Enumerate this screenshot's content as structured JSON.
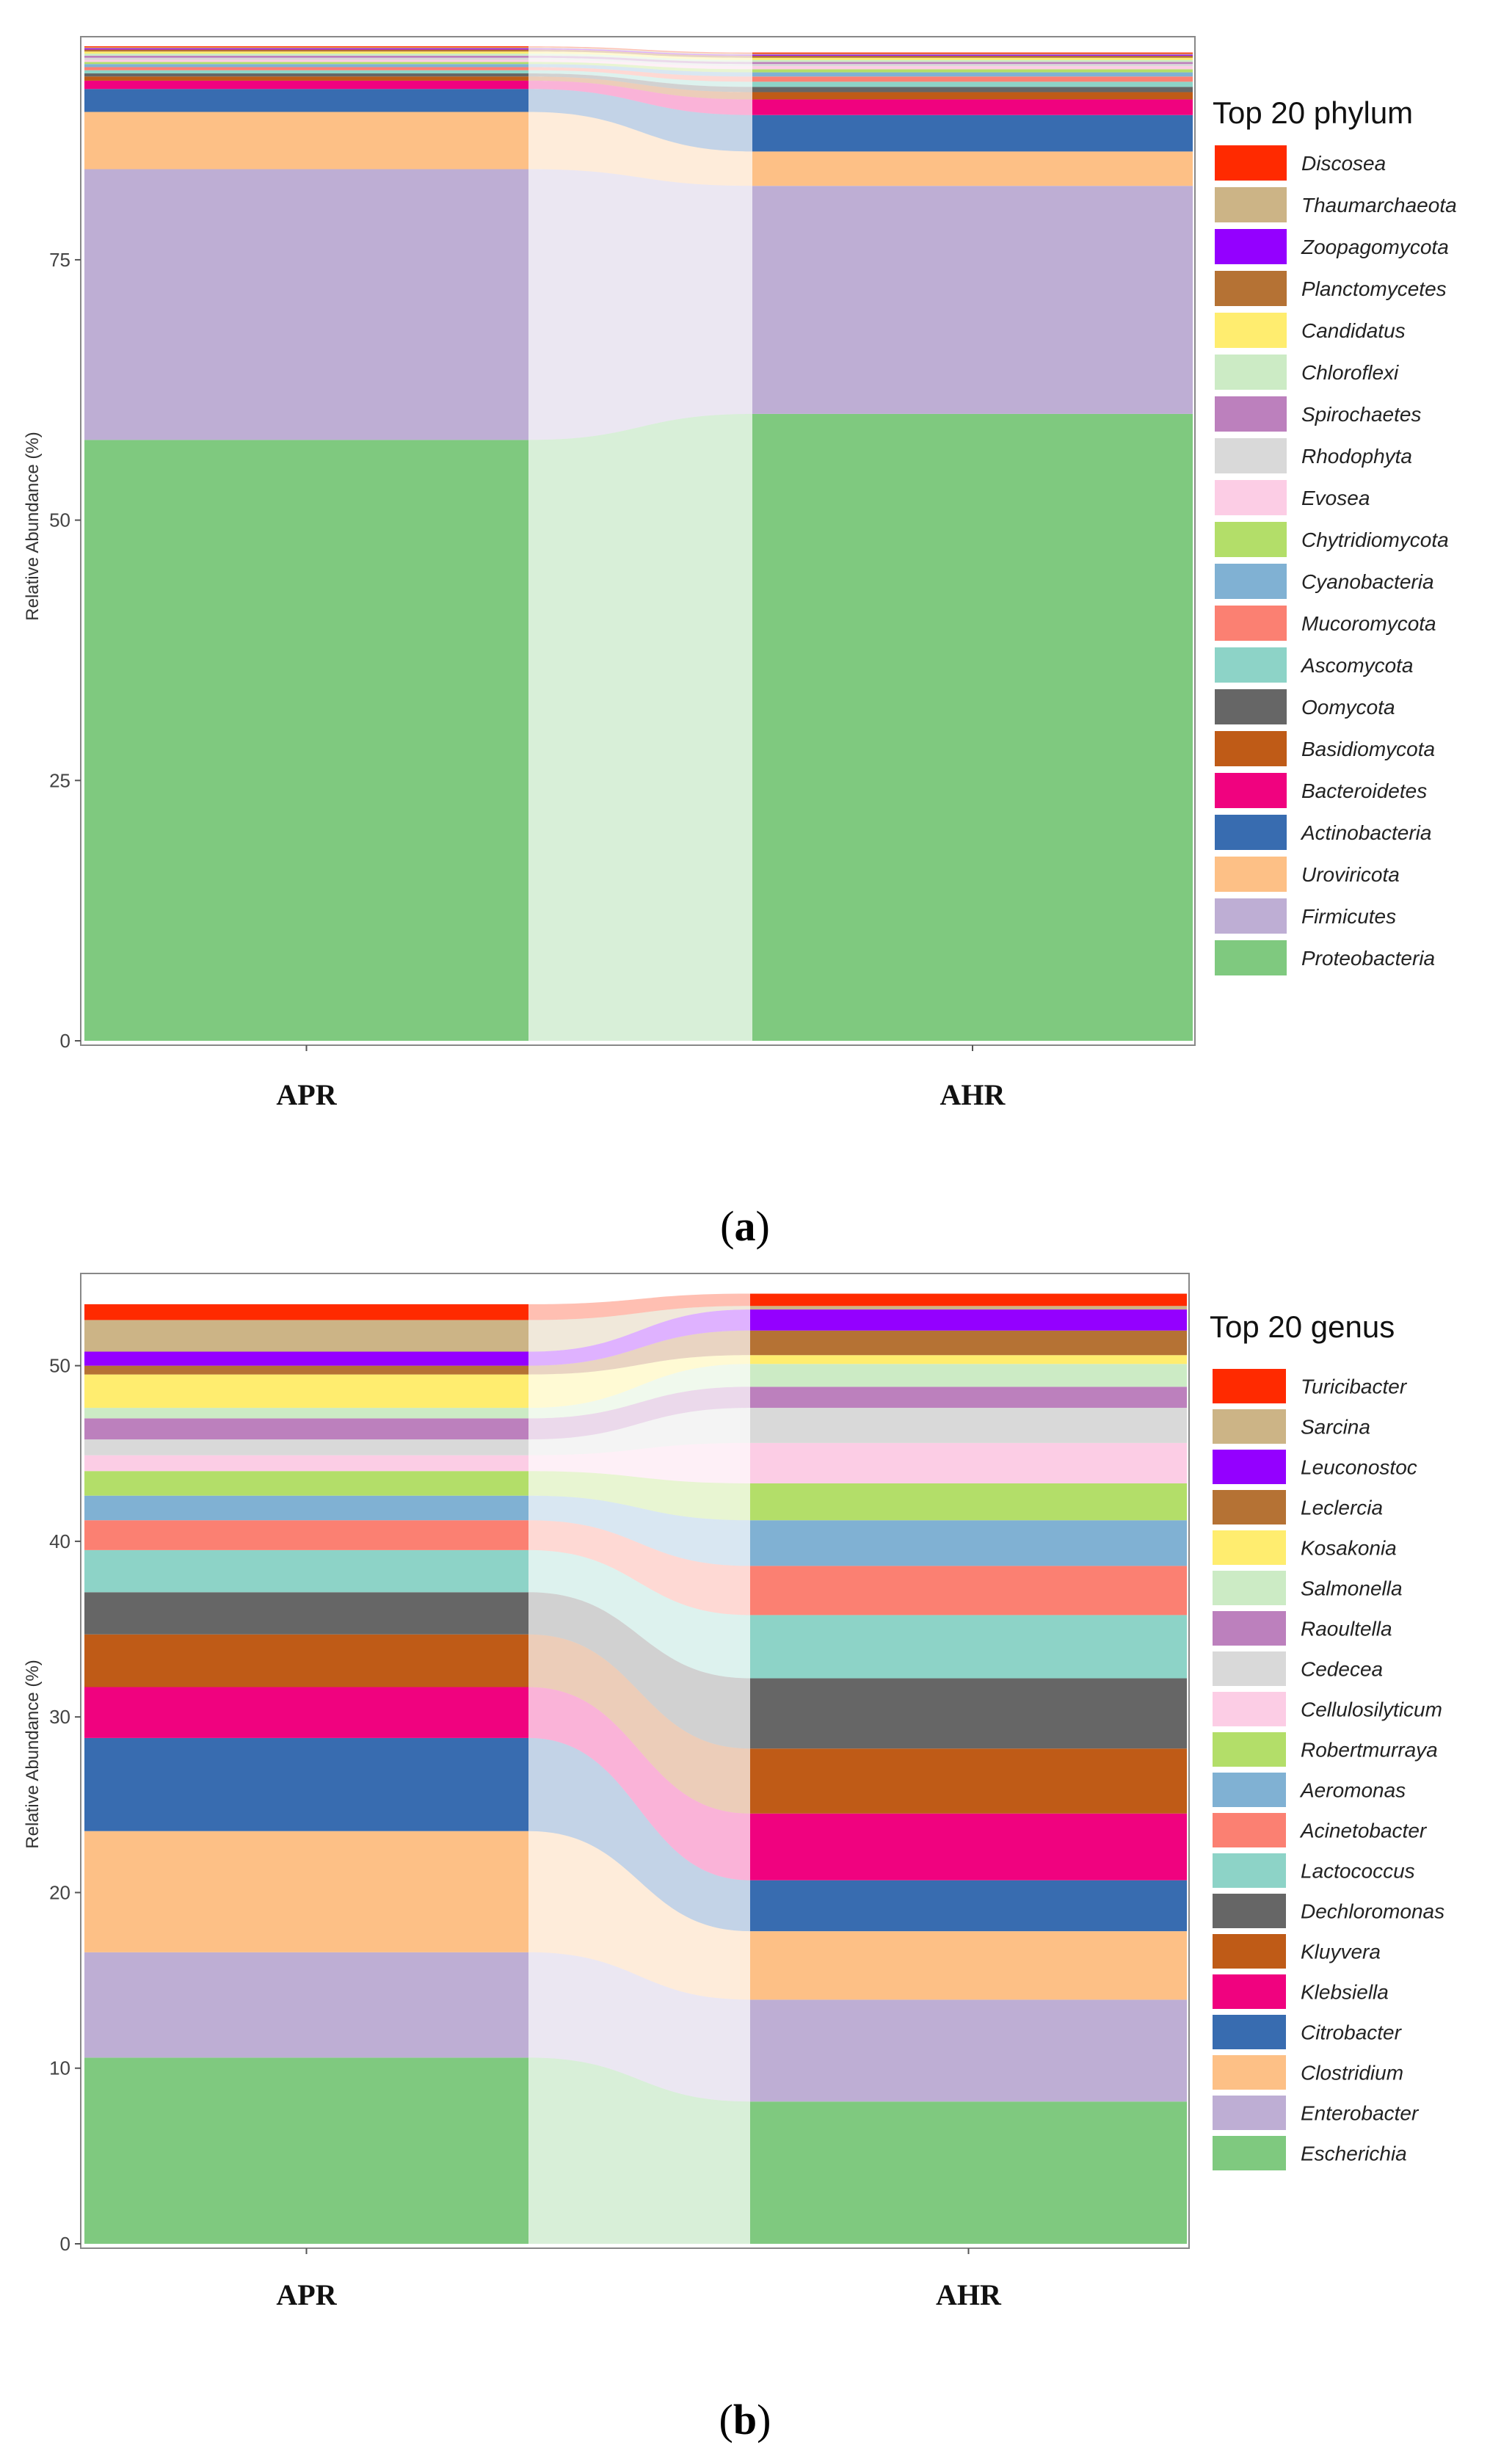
{
  "chart_data": [
    {
      "type": "alluvial-stacked-bar",
      "panel_label": "a",
      "legend_title": "Top 20 phylum",
      "ylabel": "Relative Abundance (%)",
      "ylim": [
        0,
        96
      ],
      "yticks": [
        0,
        25,
        50,
        75
      ],
      "categories": [
        "APR",
        "AHR"
      ],
      "series": [
        {
          "name": "Proteobacteria",
          "color": "#7fc97f",
          "values": [
            57.7,
            60.2
          ]
        },
        {
          "name": "Firmicutes",
          "color": "#beaed4",
          "values": [
            26.0,
            21.9
          ]
        },
        {
          "name": "Uroviricota",
          "color": "#fdc086",
          "values": [
            5.5,
            3.3
          ]
        },
        {
          "name": "Actinobacteria",
          "color": "#386cb0",
          "values": [
            2.2,
            3.5
          ]
        },
        {
          "name": "Bacteroidetes",
          "color": "#f0027f",
          "values": [
            0.8,
            1.5
          ]
        },
        {
          "name": "Basidiomycota",
          "color": "#bf5b17",
          "values": [
            0.4,
            0.7
          ]
        },
        {
          "name": "Oomycota",
          "color": "#666666",
          "values": [
            0.3,
            0.5
          ]
        },
        {
          "name": "Ascomycota",
          "color": "#8dd3c7",
          "values": [
            0.3,
            0.5
          ]
        },
        {
          "name": "Mucoromycota",
          "color": "#fb8072",
          "values": [
            0.3,
            0.5
          ]
        },
        {
          "name": "Cyanobacteria",
          "color": "#80b1d3",
          "values": [
            0.3,
            0.4
          ]
        },
        {
          "name": "Chytridiomycota",
          "color": "#b3de69",
          "values": [
            0.2,
            0.3
          ]
        },
        {
          "name": "Evosea",
          "color": "#fccde5",
          "values": [
            0.2,
            0.3
          ]
        },
        {
          "name": "Rhodophyta",
          "color": "#d9d9d9",
          "values": [
            0.2,
            0.2
          ]
        },
        {
          "name": "Spirochaetes",
          "color": "#bc80bd",
          "values": [
            0.2,
            0.2
          ]
        },
        {
          "name": "Chloroflexi",
          "color": "#ccebc5",
          "values": [
            0.2,
            0.2
          ]
        },
        {
          "name": "Candidatus",
          "color": "#ffed6f",
          "values": [
            0.2,
            0.2
          ]
        },
        {
          "name": "Planctomycetes",
          "color": "#b57234",
          "values": [
            0.2,
            0.2
          ]
        },
        {
          "name": "Zoopagomycota",
          "color": "#9400ff",
          "values": [
            0.1,
            0.1
          ]
        },
        {
          "name": "Thaumarchaeota",
          "color": "#ccb486",
          "values": [
            0.1,
            0.1
          ]
        },
        {
          "name": "Discosea",
          "color": "#ff2a00",
          "values": [
            0.1,
            0.1
          ]
        }
      ]
    },
    {
      "type": "alluvial-stacked-bar",
      "panel_label": "b",
      "legend_title": "Top 20 genus",
      "ylabel": "Relative Abundance (%)",
      "ylim": [
        0,
        55
      ],
      "yticks": [
        0,
        10,
        20,
        30,
        40,
        50
      ],
      "categories": [
        "APR",
        "AHR"
      ],
      "series": [
        {
          "name": "Escherichia",
          "color": "#7fc97f",
          "values": [
            10.6,
            8.1
          ]
        },
        {
          "name": "Enterobacter",
          "color": "#beaed4",
          "values": [
            6.0,
            5.8
          ]
        },
        {
          "name": "Clostridium",
          "color": "#fdc086",
          "values": [
            6.9,
            3.9
          ]
        },
        {
          "name": "Citrobacter",
          "color": "#386cb0",
          "values": [
            5.3,
            2.9
          ]
        },
        {
          "name": "Klebsiella",
          "color": "#f0027f",
          "values": [
            2.9,
            3.8
          ]
        },
        {
          "name": "Kluyvera",
          "color": "#bf5b17",
          "values": [
            3.0,
            3.7
          ]
        },
        {
          "name": "Dechloromonas",
          "color": "#666666",
          "values": [
            2.4,
            4.0
          ]
        },
        {
          "name": "Lactococcus",
          "color": "#8dd3c7",
          "values": [
            2.4,
            3.6
          ]
        },
        {
          "name": "Acinetobacter",
          "color": "#fb8072",
          "values": [
            1.7,
            2.8
          ]
        },
        {
          "name": "Aeromonas",
          "color": "#80b1d3",
          "values": [
            1.4,
            2.6
          ]
        },
        {
          "name": "Robertmurraya",
          "color": "#b3de69",
          "values": [
            1.4,
            2.1
          ]
        },
        {
          "name": "Cellulosilyticum",
          "color": "#fccde5",
          "values": [
            0.9,
            2.3
          ]
        },
        {
          "name": "Cedecea",
          "color": "#d9d9d9",
          "values": [
            0.9,
            2.0
          ]
        },
        {
          "name": "Raoultella",
          "color": "#bc80bd",
          "values": [
            1.2,
            1.2
          ]
        },
        {
          "name": "Salmonella",
          "color": "#ccebc5",
          "values": [
            0.6,
            1.3
          ]
        },
        {
          "name": "Kosakonia",
          "color": "#ffed6f",
          "values": [
            1.9,
            0.5
          ]
        },
        {
          "name": "Leclercia",
          "color": "#b57234",
          "values": [
            0.5,
            1.4
          ]
        },
        {
          "name": "Leuconostoc",
          "color": "#9400ff",
          "values": [
            0.8,
            1.2
          ]
        },
        {
          "name": "Sarcina",
          "color": "#ccb486",
          "values": [
            1.8,
            0.2
          ]
        },
        {
          "name": "Turicibacter",
          "color": "#ff2a00",
          "values": [
            0.9,
            0.7
          ]
        }
      ]
    }
  ]
}
